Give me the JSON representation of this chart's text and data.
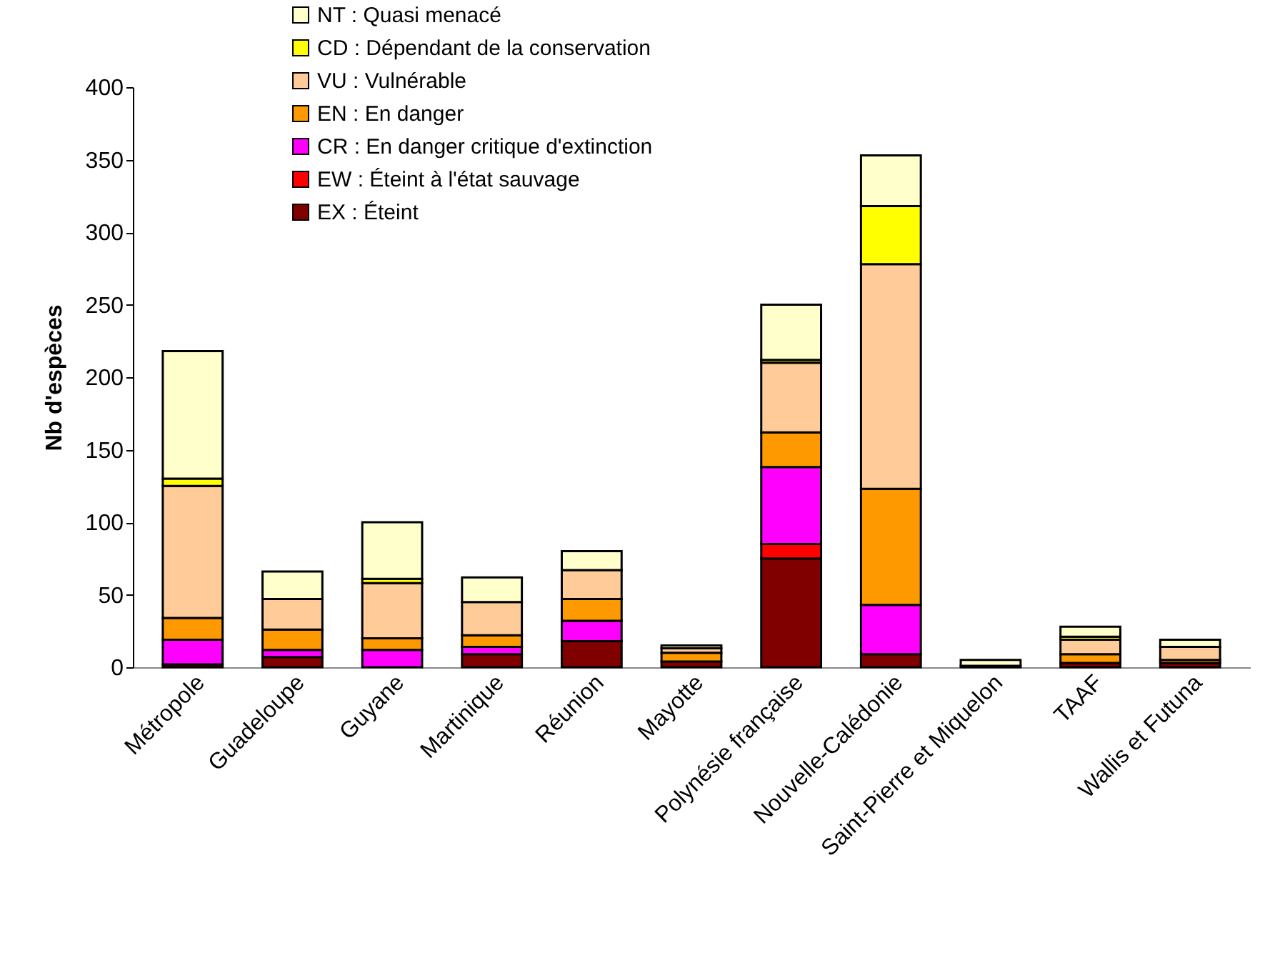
{
  "chart_data": {
    "type": "bar",
    "stacked": true,
    "ylabel": "Nb d'espèces",
    "categories": [
      "Métropole",
      "Guadeloupe",
      "Guyane",
      "Martinique",
      "Réunion",
      "Mayotte",
      "Polynésie française",
      "Nouvelle-Calédonie",
      "Saint-Pierre et Miquelon",
      "TAAF",
      "Wallis et Futuna"
    ],
    "series": [
      {
        "name": "EX : Éteint",
        "color": "#800000",
        "values": [
          2,
          7,
          0,
          9,
          18,
          4,
          75,
          9,
          1,
          3,
          3
        ]
      },
      {
        "name": "EW : Éteint à l'état sauvage",
        "color": "#ff0000",
        "values": [
          0,
          0,
          0,
          0,
          0,
          0,
          10,
          0,
          0,
          0,
          0
        ]
      },
      {
        "name": "CR : En danger critique d'extinction",
        "color": "#ff00ff",
        "values": [
          17,
          5,
          12,
          5,
          14,
          null,
          53,
          34,
          0,
          0,
          0
        ]
      },
      {
        "name": "EN : En danger",
        "color": "#ff9900",
        "values": [
          15,
          14,
          8,
          8,
          15,
          6,
          24,
          80,
          0,
          6,
          2
        ]
      },
      {
        "name": "VU : Vulnérable",
        "color": "#ffcc99",
        "values": [
          91,
          21,
          38,
          23,
          20,
          3,
          48,
          155,
          0,
          10,
          9
        ]
      },
      {
        "name": "CD : Dépendant de la conservation",
        "color": "#ffff00",
        "values": [
          5,
          0,
          3,
          0,
          0,
          0,
          2,
          40,
          0,
          2,
          0
        ]
      },
      {
        "name": "NT : Quasi menacé",
        "color": "#ffffcc",
        "values": [
          88,
          19,
          39,
          17,
          13,
          2,
          38,
          35,
          4,
          7,
          5
        ]
      }
    ],
    "ylim": [
      0,
      400
    ],
    "yticks": [
      0,
      50,
      100,
      150,
      200,
      250,
      300,
      350,
      400
    ],
    "grid": false,
    "legend": "top left"
  }
}
